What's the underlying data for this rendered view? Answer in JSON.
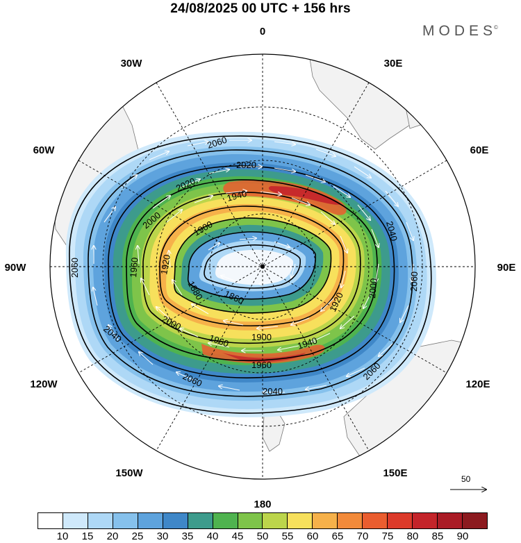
{
  "title": "24/08/2025  00 UTC  + 156 hrs",
  "brand": {
    "name": "MODES",
    "mark": "©"
  },
  "longitude_labels": [
    "0",
    "30E",
    "60E",
    "90E",
    "120E",
    "150E",
    "180",
    "150W",
    "120W",
    "90W",
    "60W",
    "30W"
  ],
  "contour_labels": [
    "2060",
    "2020",
    "2020",
    "1940",
    "2000",
    "1900",
    "1920",
    "1860",
    "1880",
    "2060",
    "2040",
    "1960",
    "2000",
    "1900",
    "1940",
    "1920",
    "2000",
    "2040",
    "2060",
    "1960",
    "2060",
    "2040",
    "2060"
  ],
  "reference_vector": {
    "value": "50"
  },
  "colorbar": {
    "colors": [
      "#ffffff",
      "#cfe9fb",
      "#aed8f6",
      "#86c1ec",
      "#5ea3dd",
      "#3f87c8",
      "#3d9b8c",
      "#4fb34f",
      "#7ec44a",
      "#bcd54b",
      "#f7e05c",
      "#f6b14a",
      "#f28a3a",
      "#ea5d2f",
      "#dc3a2a",
      "#c4242a",
      "#aa1b25",
      "#8c1a1f"
    ],
    "labels": [
      "10",
      "15",
      "20",
      "25",
      "30",
      "35",
      "40",
      "45",
      "50",
      "55",
      "60",
      "65",
      "70",
      "75",
      "80",
      "85",
      "90"
    ]
  },
  "map_data": {
    "projection": "south-polar-stereographic",
    "field": "500 hPa geopotential height (gpm) and wind speed",
    "vortex_center": "near pole",
    "jet_max_sector": "Indian Ocean / south of Africa"
  }
}
